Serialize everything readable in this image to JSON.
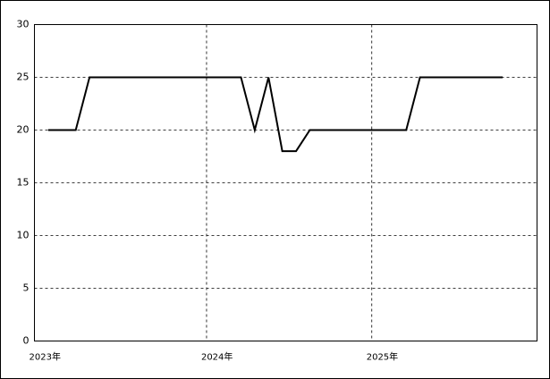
{
  "chart_data": {
    "type": "line",
    "x": [
      0,
      1,
      2,
      3,
      4,
      5,
      6,
      7,
      8,
      9,
      10,
      11,
      12,
      13,
      14,
      15,
      16,
      17,
      18,
      19,
      20,
      21,
      22,
      23,
      24,
      25,
      26,
      27,
      28,
      29,
      30,
      31,
      32,
      33
    ],
    "series": [
      {
        "color": "#000000",
        "values": [
          20,
          20,
          20,
          25,
          25,
          25,
          25,
          25,
          25,
          25,
          25,
          25,
          25,
          25,
          25,
          20,
          25,
          18,
          18,
          20,
          20,
          20,
          20,
          20,
          20,
          20,
          20,
          25,
          25,
          25,
          25,
          25,
          25,
          25
        ]
      }
    ],
    "xlim": [
      -1,
      35.5
    ],
    "xticks": [
      {
        "value": -1,
        "label": "2023年"
      },
      {
        "value": 11.5,
        "label": "2024年"
      },
      {
        "value": 23.5,
        "label": "2025年"
      }
    ],
    "ylim": [
      0,
      30
    ],
    "yticks": [
      0,
      5,
      10,
      15,
      20,
      25,
      30
    ],
    "grid": true
  }
}
